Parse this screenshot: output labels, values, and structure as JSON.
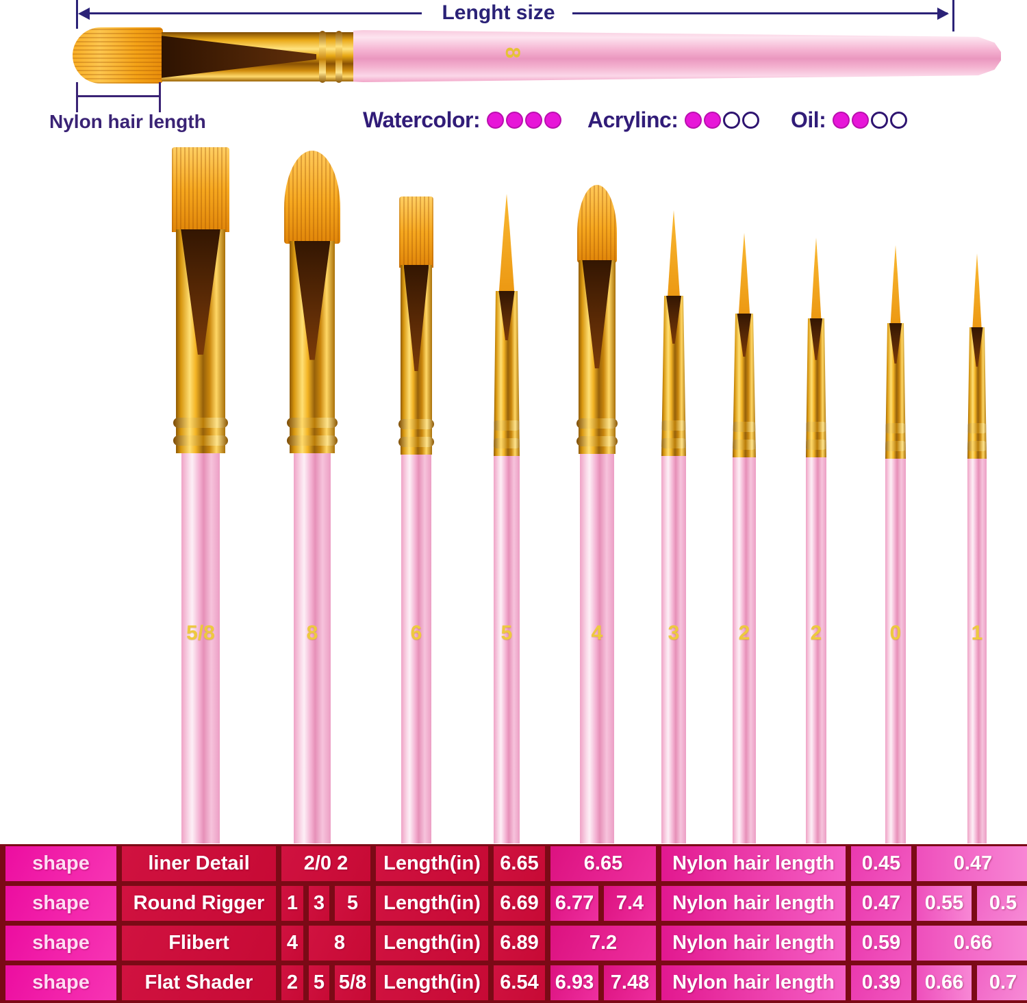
{
  "annotations": {
    "length_size_label": "Lenght size",
    "nylon_hair_label": "Nylon hair length",
    "horizontal_brush_size": "8"
  },
  "ratings": [
    {
      "label": "Watercolor:",
      "filled": 4,
      "total": 4
    },
    {
      "label": "Acrylinc:",
      "filled": 2,
      "total": 4
    },
    {
      "label": "Oil:",
      "filled": 2,
      "total": 4
    }
  ],
  "brush_sizes": [
    "5/8",
    "8",
    "6",
    "5",
    "4",
    "3",
    "2",
    "2",
    "0",
    "1"
  ],
  "table": {
    "rows": [
      {
        "cells": [
          "shape",
          "liner Detail",
          "2/0 2",
          "Length(in)",
          "6.65",
          "6.65",
          "Nylon hair length",
          "0.45",
          "0.47"
        ]
      },
      {
        "cells": [
          "shape",
          "Round Rigger",
          "1",
          "3",
          "5",
          "Length(in)",
          "6.69",
          "6.77",
          "7.4",
          "Nylon hair length",
          "0.47",
          "0.55",
          "0.5"
        ]
      },
      {
        "cells": [
          "shape",
          "Flibert",
          "4",
          "8",
          "Length(in)",
          "6.89",
          "7.2",
          "Nylon hair length",
          "0.59",
          "0.66"
        ]
      },
      {
        "cells": [
          "shape",
          "Flat Shader",
          "2",
          "5",
          "5/8",
          "Length(in)",
          "6.54",
          "6.93",
          "7.48",
          "Nylon hair length",
          "0.39",
          "0.66",
          "0.7"
        ]
      }
    ]
  },
  "colors": {
    "annotation_ink": "#2b2277",
    "rating_dot_filled": "#e716d8",
    "table_border": "#7b0a16",
    "table_crimson": "#d01240",
    "table_magenta": "#e2188f",
    "table_pink": "#ee4fbc",
    "handle_pink": "#f5b3d2",
    "ferrule_gold": "#f3b425",
    "bristle_orange": "#f6a81f",
    "handle_number_yellow": "#edc93f"
  }
}
